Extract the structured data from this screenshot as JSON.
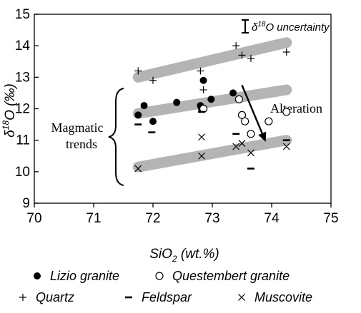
{
  "chart_data": {
    "type": "scatter",
    "xlim": [
      70,
      75
    ],
    "ylim": [
      9,
      15
    ],
    "x_ticks": [
      70,
      71,
      72,
      73,
      74,
      75
    ],
    "y_ticks": [
      9,
      10,
      11,
      12,
      13,
      14,
      15
    ],
    "x_ticks_labels": [
      "70",
      "71",
      "72",
      "73",
      "74",
      "75"
    ],
    "y_ticks_labels": [
      "9",
      "10",
      "11",
      "12",
      "13",
      "14",
      "15"
    ],
    "xlabel_main": "SiO",
    "xlabel_sub": "2",
    "xlabel_tail": " (wt.%)",
    "ylabel_main": "δ",
    "ylabel_sup": "18",
    "ylabel_tail": "O (‰)",
    "grid": false,
    "uncertainty_label": {
      "prefix": "δ",
      "sup": "18",
      "tail": "O uncertainty"
    },
    "annotations": {
      "alteration": "Alteration",
      "magmatic_line1": "Magmatic",
      "magmatic_line2": "trends"
    },
    "trend_bands": [
      {
        "x": [
          71.75,
          74.25
        ],
        "y": [
          13.0,
          14.1
        ]
      },
      {
        "x": [
          71.75,
          74.25
        ],
        "y": [
          11.85,
          12.6
        ]
      },
      {
        "x": [
          71.75,
          74.25
        ],
        "y": [
          10.15,
          11.0
        ]
      }
    ],
    "alteration_arrow": {
      "from": [
        73.5,
        12.75
      ],
      "to": [
        73.9,
        10.95
      ]
    },
    "series": [
      {
        "name": "Lizio granite",
        "marker": "filled-circle",
        "x": [
          71.75,
          71.85,
          72.0,
          72.4,
          72.8,
          72.82,
          72.85,
          72.98,
          73.35
        ],
        "y": [
          11.8,
          12.1,
          11.6,
          12.2,
          12.1,
          12.0,
          12.9,
          12.3,
          12.5
        ]
      },
      {
        "name": "Questembert granite",
        "marker": "open-circle",
        "x": [
          72.85,
          73.45,
          73.5,
          73.55,
          73.65,
          73.95,
          74.25
        ],
        "y": [
          12.0,
          12.3,
          11.8,
          11.6,
          11.2,
          11.6,
          11.9
        ]
      },
      {
        "name": "Quartz",
        "marker": "plus",
        "x": [
          71.75,
          72.0,
          72.8,
          72.85,
          73.4,
          73.5,
          73.65,
          74.25
        ],
        "y": [
          13.2,
          12.9,
          13.2,
          12.6,
          14.0,
          13.7,
          13.6,
          13.8
        ]
      },
      {
        "name": "Feldspar",
        "marker": "dash",
        "x": [
          71.75,
          71.98,
          72.82,
          73.4,
          73.65,
          74.25
        ],
        "y": [
          11.5,
          11.25,
          11.9,
          11.2,
          10.1,
          11.0
        ]
      },
      {
        "name": "Muscovite",
        "marker": "cross",
        "x": [
          71.75,
          72.82,
          72.82,
          73.4,
          73.5,
          73.65,
          74.25
        ],
        "y": [
          10.1,
          11.1,
          10.5,
          10.8,
          10.9,
          10.6,
          10.8
        ]
      }
    ],
    "legend": {
      "placement": "bottom",
      "rows": [
        [
          "Lizio granite",
          "Questembert granite"
        ],
        [
          "Quartz",
          "Feldspar",
          "Muscovite"
        ]
      ]
    },
    "colors": {
      "band": "#b4b4b4",
      "marker": "#000000",
      "axis": "#000000"
    }
  }
}
